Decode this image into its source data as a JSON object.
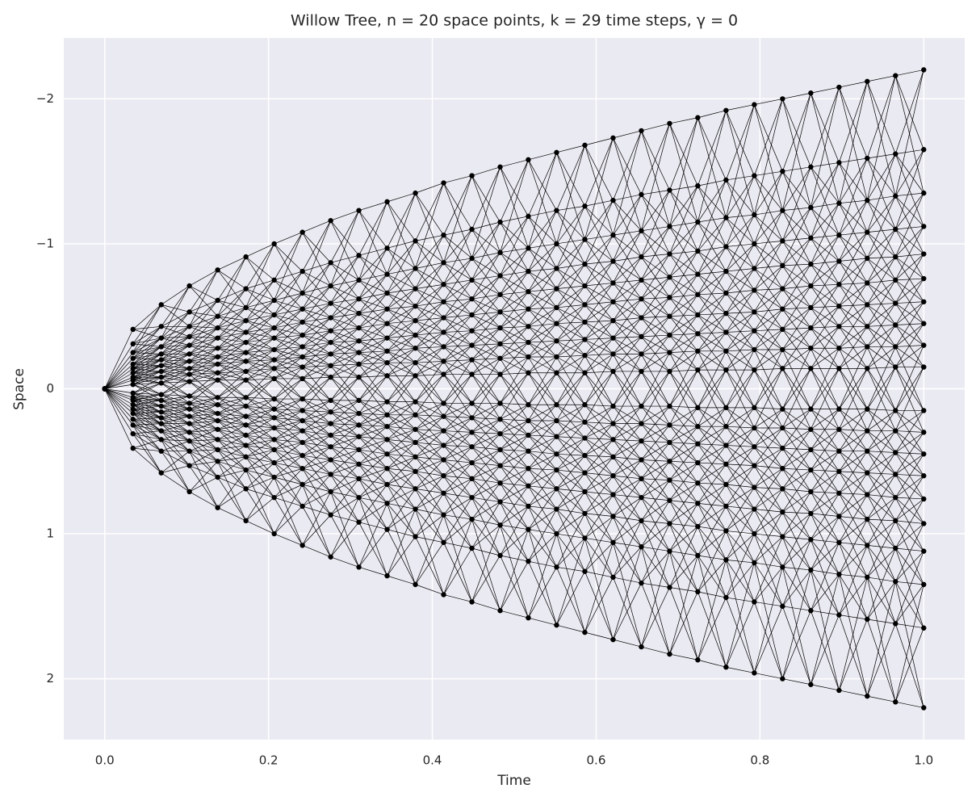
{
  "chart_data": {
    "type": "tree",
    "title": "Willow Tree, n = 20 space points, k = 29 time steps, γ = 0",
    "x_label": "Time",
    "y_label": "Space",
    "color": "#000000",
    "grid": true,
    "xlim": [
      -0.05,
      1.05
    ],
    "ylim": [
      2.42,
      -2.42
    ],
    "xticks": [
      {
        "value": 0,
        "label": "0.0"
      },
      {
        "value": 0.2,
        "label": "0.2"
      },
      {
        "value": 0.4,
        "label": "0.4"
      },
      {
        "value": 0.6,
        "label": "0.6"
      },
      {
        "value": 0.8,
        "label": "0.8"
      },
      {
        "value": 1,
        "label": "1.0"
      }
    ],
    "yticks": [
      {
        "value": -2,
        "label": "−2"
      },
      {
        "value": -1,
        "label": "−1"
      },
      0,
      1,
      2
    ],
    "x": [
      0,
      0.0345,
      0.069,
      0.1034,
      0.1379,
      0.1724,
      0.2069,
      0.2414,
      0.2759,
      0.3103,
      0.3448,
      0.3793,
      0.4138,
      0.4483,
      0.4828,
      0.5172,
      0.5517,
      0.5862,
      0.6207,
      0.6552,
      0.6897,
      0.7241,
      0.7586,
      0.7931,
      0.8276,
      0.8621,
      0.8966,
      0.931,
      0.9655,
      1
    ],
    "series": [
      {
        "values": [
          0,
          -0.41,
          -0.58,
          -0.71,
          -0.82,
          -0.91,
          -1.0,
          -1.08,
          -1.16,
          -1.23,
          -1.29,
          -1.35,
          -1.42,
          -1.47,
          -1.53,
          -1.58,
          -1.63,
          -1.68,
          -1.73,
          -1.78,
          -1.83,
          -1.87,
          -1.92,
          -1.96,
          -2.0,
          -2.04,
          -2.08,
          -2.12,
          -2.16,
          -2.2
        ]
      },
      {
        "values": [
          0,
          -0.31,
          -0.43,
          -0.53,
          -0.61,
          -0.69,
          -0.75,
          -0.81,
          -0.87,
          -0.92,
          -0.97,
          -1.02,
          -1.06,
          -1.1,
          -1.15,
          -1.19,
          -1.23,
          -1.26,
          -1.3,
          -1.34,
          -1.37,
          -1.4,
          -1.44,
          -1.47,
          -1.5,
          -1.53,
          -1.56,
          -1.59,
          -1.62,
          -1.65
        ]
      },
      {
        "values": [
          0,
          -0.25,
          -0.35,
          -0.43,
          -0.5,
          -0.56,
          -0.61,
          -0.66,
          -0.71,
          -0.75,
          -0.79,
          -0.83,
          -0.87,
          -0.9,
          -0.94,
          -0.97,
          -1.0,
          -1.03,
          -1.06,
          -1.09,
          -1.12,
          -1.15,
          -1.18,
          -1.2,
          -1.23,
          -1.25,
          -1.28,
          -1.3,
          -1.33,
          -1.35
        ]
      },
      {
        "values": [
          0,
          -0.21,
          -0.29,
          -0.36,
          -0.42,
          -0.47,
          -0.51,
          -0.55,
          -0.59,
          -0.62,
          -0.66,
          -0.69,
          -0.72,
          -0.75,
          -0.78,
          -0.81,
          -0.83,
          -0.86,
          -0.88,
          -0.91,
          -0.93,
          -0.95,
          -0.98,
          -1.0,
          -1.02,
          -1.04,
          -1.06,
          -1.08,
          -1.1,
          -1.12
        ]
      },
      {
        "values": [
          0,
          -0.17,
          -0.24,
          -0.3,
          -0.35,
          -0.39,
          -0.42,
          -0.46,
          -0.49,
          -0.52,
          -0.55,
          -0.57,
          -0.6,
          -0.62,
          -0.65,
          -0.67,
          -0.69,
          -0.71,
          -0.73,
          -0.75,
          -0.77,
          -0.79,
          -0.81,
          -0.83,
          -0.85,
          -0.86,
          -0.88,
          -0.9,
          -0.91,
          -0.93
        ]
      },
      {
        "values": [
          0,
          -0.14,
          -0.2,
          -0.24,
          -0.28,
          -0.32,
          -0.35,
          -0.37,
          -0.4,
          -0.42,
          -0.45,
          -0.47,
          -0.49,
          -0.51,
          -0.53,
          -0.55,
          -0.56,
          -0.58,
          -0.6,
          -0.62,
          -0.63,
          -0.65,
          -0.66,
          -0.68,
          -0.69,
          -0.71,
          -0.72,
          -0.73,
          -0.75,
          -0.76
        ]
      },
      {
        "values": [
          0,
          -0.11,
          -0.16,
          -0.19,
          -0.22,
          -0.25,
          -0.27,
          -0.29,
          -0.32,
          -0.33,
          -0.35,
          -0.37,
          -0.39,
          -0.4,
          -0.42,
          -0.43,
          -0.45,
          -0.46,
          -0.47,
          -0.49,
          -0.5,
          -0.51,
          -0.52,
          -0.53,
          -0.55,
          -0.56,
          -0.57,
          -0.58,
          -0.59,
          -0.6
        ]
      },
      {
        "values": [
          0,
          -0.08,
          -0.12,
          -0.14,
          -0.17,
          -0.19,
          -0.2,
          -0.22,
          -0.24,
          -0.25,
          -0.26,
          -0.28,
          -0.29,
          -0.3,
          -0.31,
          -0.32,
          -0.33,
          -0.34,
          -0.35,
          -0.36,
          -0.37,
          -0.38,
          -0.39,
          -0.4,
          -0.41,
          -0.42,
          -0.43,
          -0.43,
          -0.44,
          -0.45
        ]
      },
      {
        "values": [
          0,
          -0.06,
          -0.08,
          -0.1,
          -0.11,
          -0.12,
          -0.14,
          -0.15,
          -0.16,
          -0.17,
          -0.18,
          -0.18,
          -0.19,
          -0.2,
          -0.21,
          -0.22,
          -0.22,
          -0.23,
          -0.24,
          -0.24,
          -0.25,
          -0.26,
          -0.26,
          -0.27,
          -0.27,
          -0.28,
          -0.28,
          -0.29,
          -0.29,
          -0.3
        ]
      },
      {
        "values": [
          0,
          -0.03,
          -0.04,
          -0.05,
          -0.06,
          -0.06,
          -0.07,
          -0.07,
          -0.08,
          -0.08,
          -0.09,
          -0.09,
          -0.1,
          -0.1,
          -0.1,
          -0.11,
          -0.11,
          -0.11,
          -0.12,
          -0.12,
          -0.12,
          -0.13,
          -0.13,
          -0.13,
          -0.14,
          -0.14,
          -0.14,
          -0.14,
          -0.15,
          -0.15
        ]
      },
      {
        "values": [
          0,
          0.03,
          0.04,
          0.05,
          0.06,
          0.06,
          0.07,
          0.07,
          0.08,
          0.08,
          0.09,
          0.09,
          0.1,
          0.1,
          0.1,
          0.11,
          0.11,
          0.11,
          0.12,
          0.12,
          0.12,
          0.13,
          0.13,
          0.13,
          0.14,
          0.14,
          0.14,
          0.14,
          0.15,
          0.15
        ]
      },
      {
        "values": [
          0,
          0.06,
          0.08,
          0.1,
          0.11,
          0.12,
          0.14,
          0.15,
          0.16,
          0.17,
          0.18,
          0.18,
          0.19,
          0.2,
          0.21,
          0.22,
          0.22,
          0.23,
          0.24,
          0.24,
          0.25,
          0.26,
          0.26,
          0.27,
          0.27,
          0.28,
          0.28,
          0.29,
          0.29,
          0.3
        ]
      },
      {
        "values": [
          0,
          0.08,
          0.12,
          0.14,
          0.17,
          0.19,
          0.2,
          0.22,
          0.24,
          0.25,
          0.26,
          0.28,
          0.29,
          0.3,
          0.31,
          0.32,
          0.33,
          0.34,
          0.35,
          0.36,
          0.37,
          0.38,
          0.39,
          0.4,
          0.41,
          0.42,
          0.43,
          0.43,
          0.44,
          0.45
        ]
      },
      {
        "values": [
          0,
          0.11,
          0.16,
          0.19,
          0.22,
          0.25,
          0.27,
          0.29,
          0.32,
          0.33,
          0.35,
          0.37,
          0.39,
          0.4,
          0.42,
          0.43,
          0.45,
          0.46,
          0.47,
          0.49,
          0.5,
          0.51,
          0.52,
          0.53,
          0.55,
          0.56,
          0.57,
          0.58,
          0.59,
          0.6
        ]
      },
      {
        "values": [
          0,
          0.14,
          0.2,
          0.24,
          0.28,
          0.32,
          0.35,
          0.37,
          0.4,
          0.42,
          0.45,
          0.47,
          0.49,
          0.51,
          0.53,
          0.55,
          0.56,
          0.58,
          0.6,
          0.62,
          0.63,
          0.65,
          0.66,
          0.68,
          0.69,
          0.71,
          0.72,
          0.73,
          0.75,
          0.76
        ]
      },
      {
        "values": [
          0,
          0.17,
          0.24,
          0.3,
          0.35,
          0.39,
          0.42,
          0.46,
          0.49,
          0.52,
          0.55,
          0.57,
          0.6,
          0.62,
          0.65,
          0.67,
          0.69,
          0.71,
          0.73,
          0.75,
          0.77,
          0.79,
          0.81,
          0.83,
          0.85,
          0.86,
          0.88,
          0.9,
          0.91,
          0.93
        ]
      },
      {
        "values": [
          0,
          0.21,
          0.29,
          0.36,
          0.42,
          0.47,
          0.51,
          0.55,
          0.59,
          0.62,
          0.66,
          0.69,
          0.72,
          0.75,
          0.78,
          0.81,
          0.83,
          0.86,
          0.88,
          0.91,
          0.93,
          0.95,
          0.98,
          1.0,
          1.02,
          1.04,
          1.06,
          1.08,
          1.1,
          1.12
        ]
      },
      {
        "values": [
          0,
          0.25,
          0.35,
          0.43,
          0.5,
          0.56,
          0.61,
          0.66,
          0.71,
          0.75,
          0.79,
          0.83,
          0.87,
          0.9,
          0.94,
          0.97,
          1.0,
          1.03,
          1.06,
          1.09,
          1.12,
          1.15,
          1.18,
          1.2,
          1.23,
          1.25,
          1.28,
          1.3,
          1.33,
          1.35
        ]
      },
      {
        "values": [
          0,
          0.31,
          0.43,
          0.53,
          0.61,
          0.69,
          0.75,
          0.81,
          0.87,
          0.92,
          0.97,
          1.02,
          1.06,
          1.1,
          1.15,
          1.19,
          1.23,
          1.26,
          1.3,
          1.34,
          1.37,
          1.4,
          1.44,
          1.47,
          1.5,
          1.53,
          1.56,
          1.59,
          1.62,
          1.65
        ]
      },
      {
        "values": [
          0,
          0.41,
          0.58,
          0.71,
          0.82,
          0.91,
          1.0,
          1.08,
          1.16,
          1.23,
          1.29,
          1.35,
          1.42,
          1.47,
          1.53,
          1.58,
          1.63,
          1.68,
          1.73,
          1.78,
          1.83,
          1.87,
          1.92,
          1.96,
          2.0,
          2.04,
          2.08,
          2.12,
          2.16,
          2.2
        ]
      }
    ]
  }
}
